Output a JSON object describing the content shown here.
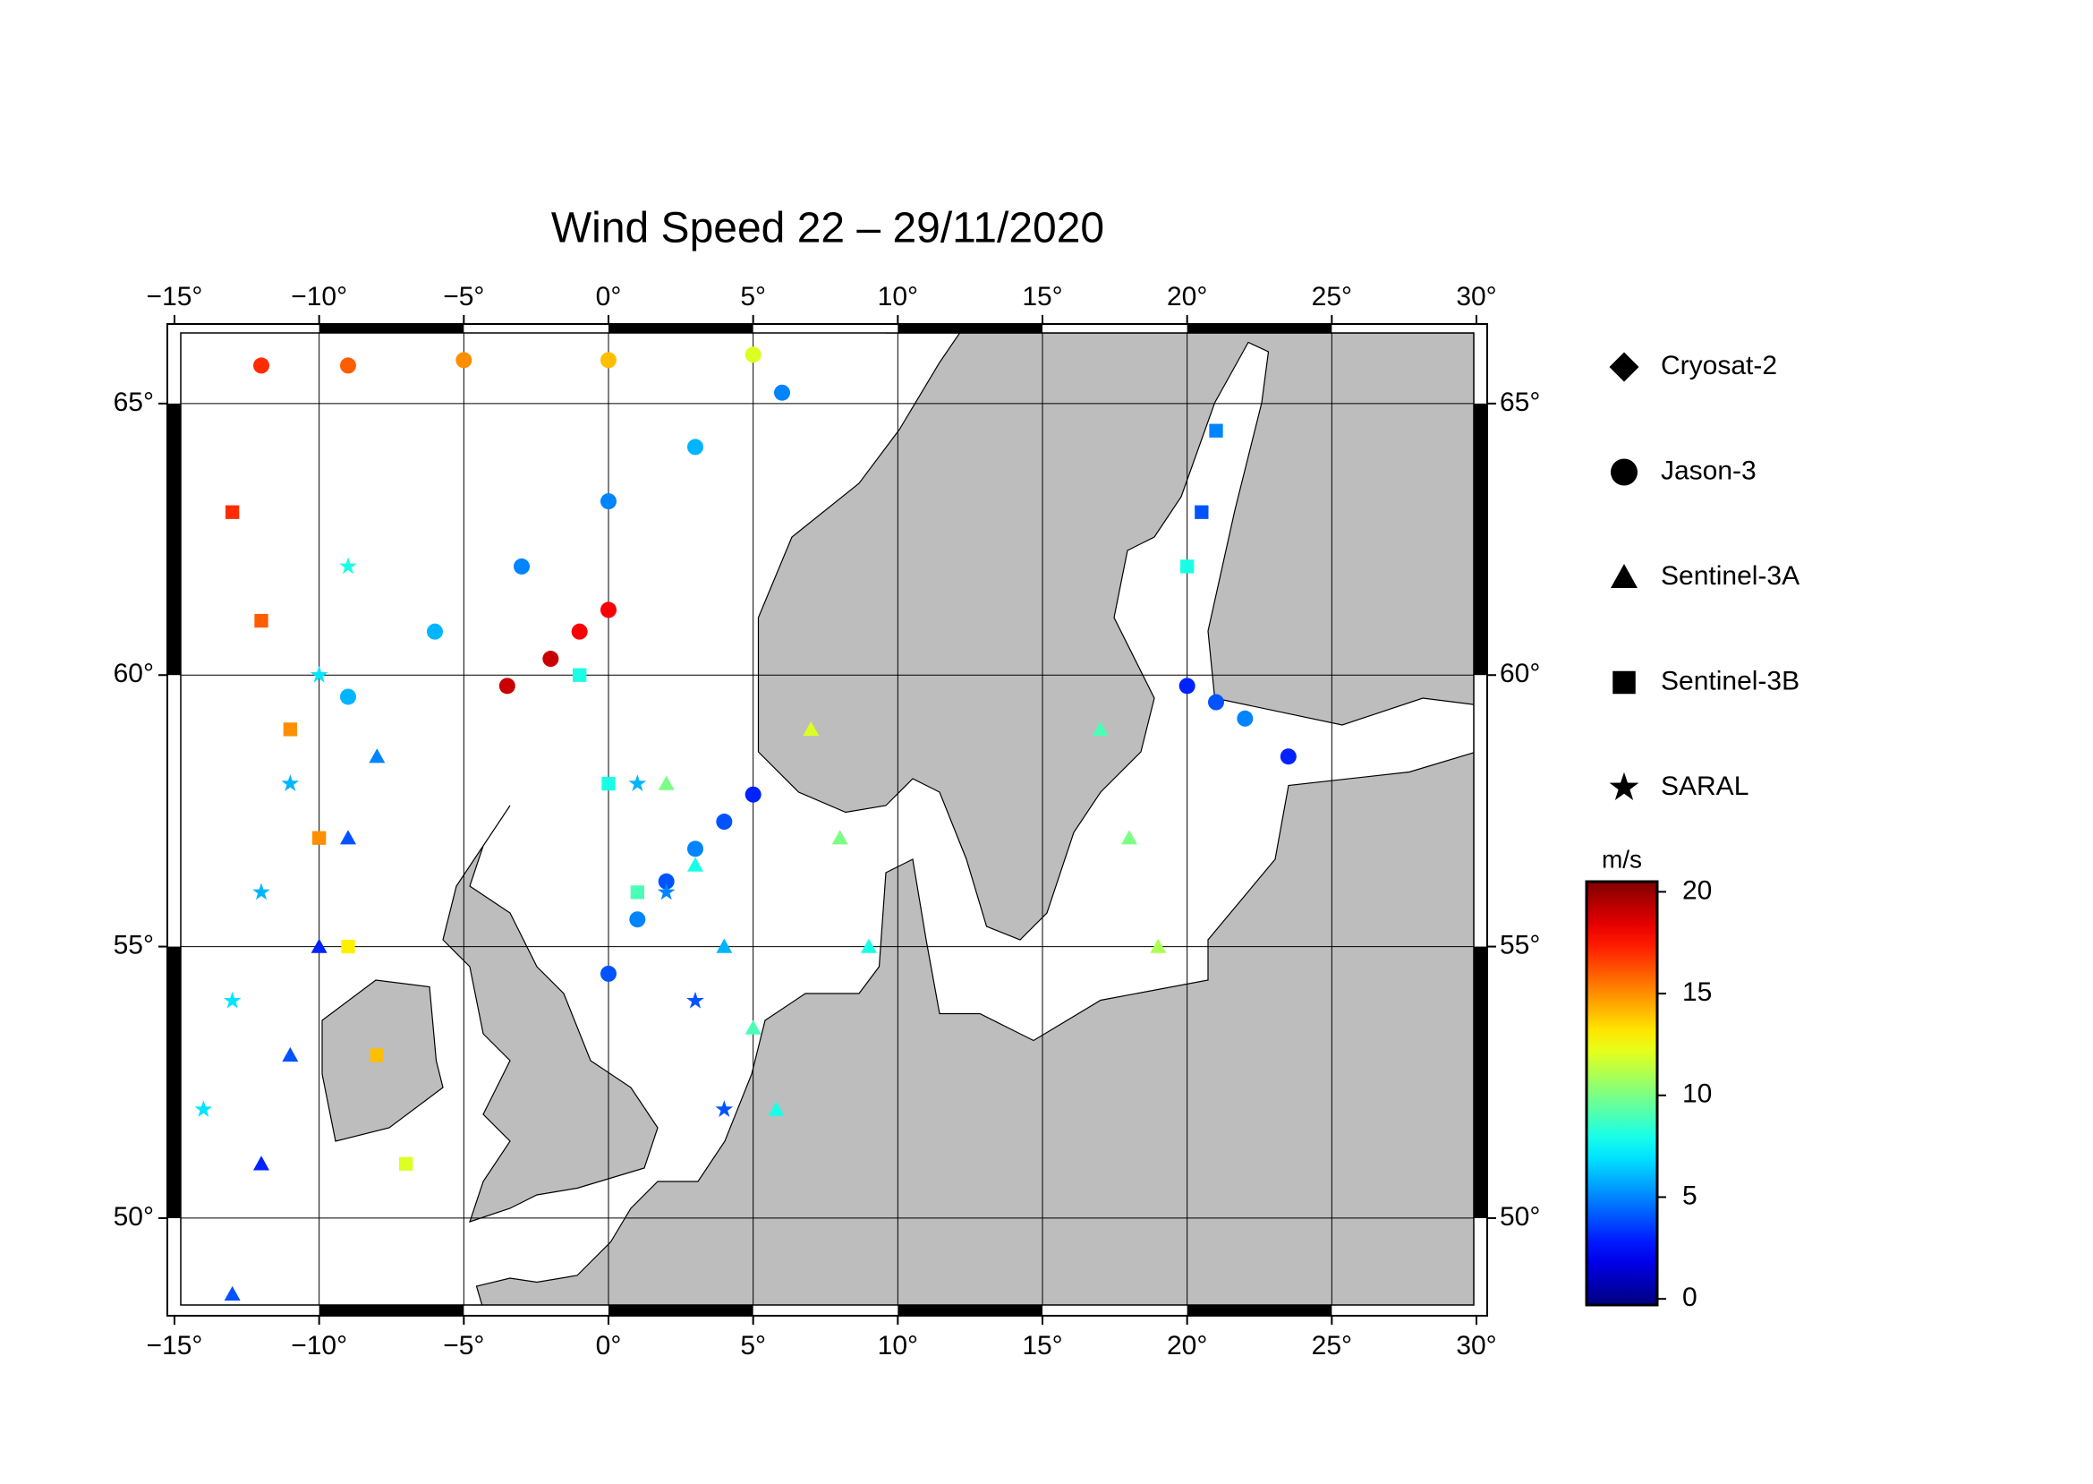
{
  "chart_data": {
    "type": "map",
    "title": "Wind Speed 22 – 29/11/2020",
    "xlim": [
      -15,
      30
    ],
    "ylim": [
      48.4,
      66.3
    ],
    "xticks": [
      {
        "value": -15,
        "label": "−15°"
      },
      {
        "value": -10,
        "label": "−10°"
      },
      {
        "value": -5,
        "label": "−5°"
      },
      {
        "value": 0,
        "label": "0°"
      },
      {
        "value": 5,
        "label": "5°"
      },
      {
        "value": 10,
        "label": "10°"
      },
      {
        "value": 15,
        "label": "15°"
      },
      {
        "value": 20,
        "label": "20°"
      },
      {
        "value": 25,
        "label": "25°"
      },
      {
        "value": 30,
        "label": "30°"
      }
    ],
    "yticks": [
      {
        "value": 50,
        "label": "50°"
      },
      {
        "value": 55,
        "label": "55°"
      },
      {
        "value": 60,
        "label": "60°"
      },
      {
        "value": 65,
        "label": "65°"
      }
    ],
    "grid": true,
    "legend": "right",
    "colorbar": {
      "label": "m/s",
      "colormap": "jet",
      "lim": [
        -0.3,
        20.5
      ],
      "ticks": [
        0,
        5,
        10,
        15,
        20
      ]
    },
    "series": [
      {
        "name": "Cryosat-2",
        "marker": "diamond",
        "lon": [],
        "lat": [],
        "values": []
      },
      {
        "name": "Jason-3",
        "marker": "circle",
        "lon": [
          -9,
          -6,
          -3,
          0,
          3,
          6,
          0,
          1,
          2,
          3,
          4,
          5,
          -3.5,
          -2,
          -1,
          0,
          -12,
          -9,
          -5,
          0,
          5,
          20,
          21,
          22,
          23.5
        ],
        "lat": [
          59.6,
          60.8,
          62,
          63.2,
          64.2,
          65.2,
          54.5,
          55.5,
          56.2,
          56.8,
          57.3,
          57.8,
          59.8,
          60.3,
          60.8,
          61.2,
          65.7,
          65.7,
          65.8,
          65.8,
          65.9,
          59.8,
          59.5,
          59.2,
          58.5
        ],
        "values": [
          6,
          6,
          5,
          5,
          6,
          5,
          4,
          5,
          4,
          5,
          4,
          3,
          19,
          19,
          18,
          18,
          17,
          16,
          15,
          14,
          12,
          3,
          4,
          5,
          3
        ]
      },
      {
        "name": "Sentinel-3A",
        "marker": "triangle",
        "lon": [
          -13,
          -12,
          -11,
          -10,
          -9,
          -8,
          2,
          3,
          4,
          5,
          5.8,
          9,
          8,
          7,
          19,
          18,
          17
        ],
        "lat": [
          48.6,
          51,
          53,
          55,
          57,
          58.5,
          58,
          56.5,
          55,
          53.5,
          52,
          55,
          57,
          59,
          55,
          57,
          59
        ],
        "values": [
          4,
          3,
          4,
          3,
          4,
          5,
          10,
          8,
          6,
          9,
          8,
          8,
          10,
          12,
          11,
          10,
          9
        ]
      },
      {
        "name": "Sentinel-3B",
        "marker": "square",
        "lon": [
          -13,
          -12,
          -11,
          -10,
          -9,
          -8,
          -7,
          -1,
          0,
          1,
          21,
          20.5,
          20
        ],
        "lat": [
          63,
          61,
          59,
          57,
          55,
          53,
          51,
          60,
          58,
          56,
          64.5,
          63,
          62
        ],
        "values": [
          17,
          16,
          15,
          15,
          13,
          14,
          12,
          8,
          8,
          9,
          5,
          4,
          8
        ]
      },
      {
        "name": "SARAL",
        "marker": "star",
        "lon": [
          -14,
          -13,
          -12,
          -11,
          -10,
          -9,
          4,
          3,
          2,
          1
        ],
        "lat": [
          52,
          54,
          56,
          58,
          60,
          62,
          52,
          54,
          56,
          58
        ],
        "values": [
          7,
          7,
          6,
          6,
          7,
          8,
          4,
          4,
          5,
          6
        ]
      }
    ]
  }
}
